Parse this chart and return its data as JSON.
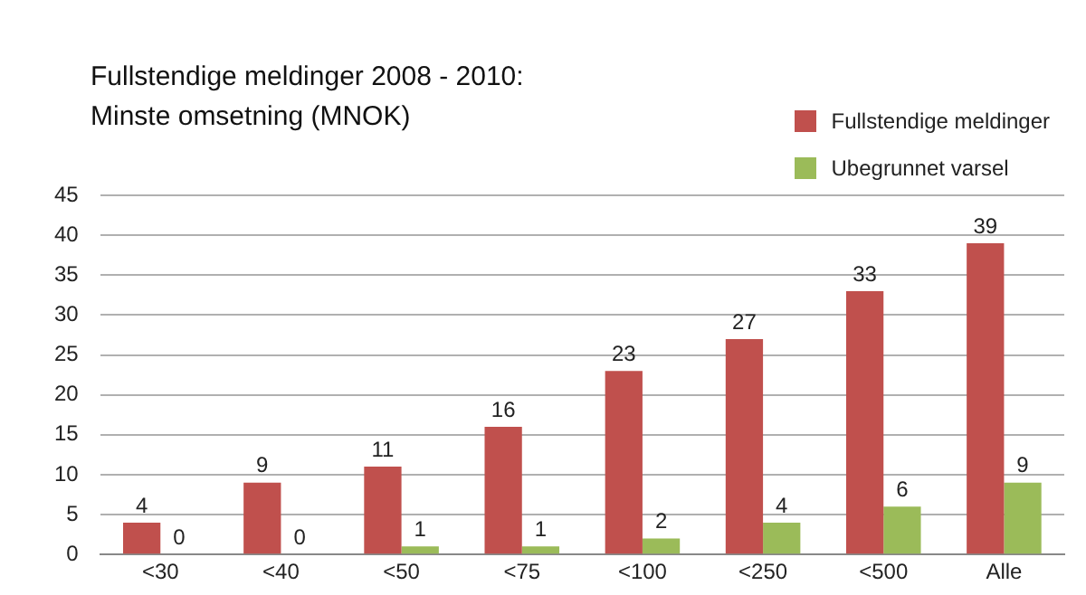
{
  "chart_data": {
    "type": "bar",
    "title": "Fullstendige meldinger 2008 - 2010:",
    "subtitle": "Minste omsetning (MNOK)",
    "categories": [
      "<30",
      "<40",
      "<50",
      "<75",
      "<100",
      "<250",
      "<500",
      "Alle"
    ],
    "series": [
      {
        "name": "Fullstendige meldinger",
        "color": "#c0504d",
        "values": [
          4,
          9,
          11,
          16,
          23,
          27,
          33,
          39
        ]
      },
      {
        "name": "Ubegrunnet varsel",
        "color": "#9bbb59",
        "values": [
          0,
          0,
          1,
          1,
          2,
          4,
          6,
          9
        ]
      }
    ],
    "ylim": [
      0,
      45
    ],
    "yticks": [
      0,
      5,
      10,
      15,
      20,
      25,
      30,
      35,
      40,
      45
    ],
    "grid": "y",
    "legend": "top right",
    "data_labels": true
  }
}
